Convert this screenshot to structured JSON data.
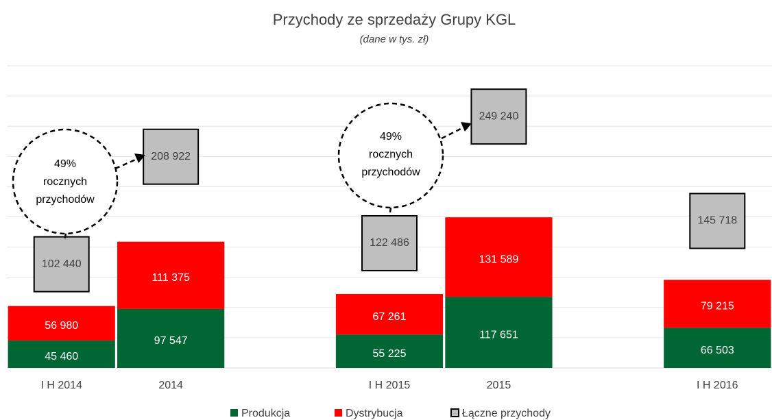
{
  "chart_data": {
    "type": "bar",
    "stacked": true,
    "title": "Przychody ze sprzedaży Grupy KGL",
    "subtitle": "(dane w tys. zł)",
    "categories": [
      "I H 2014",
      "2014",
      null,
      "I H 2015",
      "2015",
      null,
      "I H 2016"
    ],
    "series": [
      {
        "name": "Produkcja",
        "color": "#006633",
        "values": [
          45460,
          97547,
          null,
          55225,
          117651,
          null,
          66503
        ],
        "value_labels": [
          "45 460",
          "97 547",
          null,
          "55 225",
          "117 651",
          null,
          "66 503"
        ]
      },
      {
        "name": "Dystrybucja",
        "color": "#ff0000",
        "values": [
          56980,
          111375,
          null,
          67261,
          131589,
          null,
          79215
        ],
        "value_labels": [
          "56 980",
          "111 375",
          null,
          "67 261",
          "131 589",
          null,
          "79 215"
        ]
      },
      {
        "name": "Łączne przychody",
        "color": "#bfbfbf",
        "values": [
          102440,
          208922,
          null,
          122486,
          249240,
          null,
          145718
        ],
        "value_labels": [
          "102 440",
          "208 922",
          null,
          "122 486",
          "249 240",
          null,
          "145 718"
        ]
      }
    ],
    "annotations": [
      [
        "49%",
        "rocznych",
        "przychodów"
      ],
      [
        "49%",
        "rocznych",
        "przychodów"
      ]
    ],
    "ylim": [
      0,
      500000
    ],
    "yticks": [
      50000,
      100000,
      150000,
      200000,
      250000,
      300000,
      350000,
      400000,
      450000,
      500000
    ],
    "grid": true,
    "legend": "bottom"
  }
}
